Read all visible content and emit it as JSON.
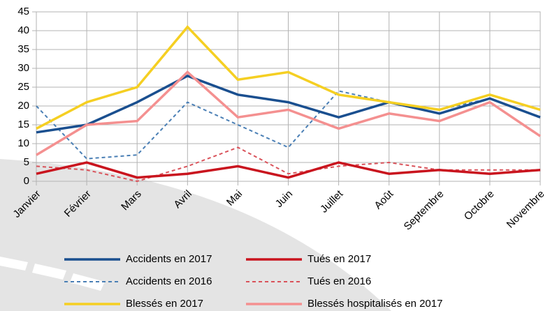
{
  "chart_data": {
    "type": "line",
    "categories": [
      "Janvier",
      "Février",
      "Mars",
      "Avril",
      "Mai",
      "Juin",
      "Juillet",
      "Août",
      "Septembre",
      "Octobre",
      "Novembre"
    ],
    "series": [
      {
        "name": "Accidents en 2017",
        "color": "#1a4f8f",
        "style": "solid",
        "values": [
          13,
          15,
          21,
          28,
          23,
          21,
          17,
          21,
          18,
          22,
          17
        ]
      },
      {
        "name": "Tués en 2017",
        "color": "#c9141e",
        "style": "solid",
        "values": [
          2,
          5,
          1,
          2,
          4,
          1,
          5,
          2,
          3,
          2,
          3
        ]
      },
      {
        "name": "Accidents en 2016",
        "color": "#4a7fb5",
        "style": "dashed",
        "values": [
          20,
          6,
          7,
          21,
          15,
          9,
          24,
          21,
          19,
          22,
          17
        ]
      },
      {
        "name": "Tués en 2016",
        "color": "#d9525a",
        "style": "dashed",
        "values": [
          4,
          3,
          0,
          4,
          9,
          2,
          4,
          5,
          3,
          3,
          3
        ]
      },
      {
        "name": "Blessés en 2017",
        "color": "#f5cf22",
        "style": "solid",
        "values": [
          14,
          21,
          25,
          41,
          27,
          29,
          23,
          21,
          19,
          23,
          19
        ]
      },
      {
        "name": "Blessés hospitalisés en 2017",
        "color": "#f49090",
        "style": "solid",
        "values": [
          7,
          15,
          16,
          29,
          17,
          19,
          14,
          18,
          16,
          21,
          12
        ]
      }
    ],
    "ylim": [
      0,
      45
    ],
    "yticks": [
      0,
      5,
      10,
      15,
      20,
      25,
      30,
      35,
      40,
      45
    ],
    "grid": true
  }
}
